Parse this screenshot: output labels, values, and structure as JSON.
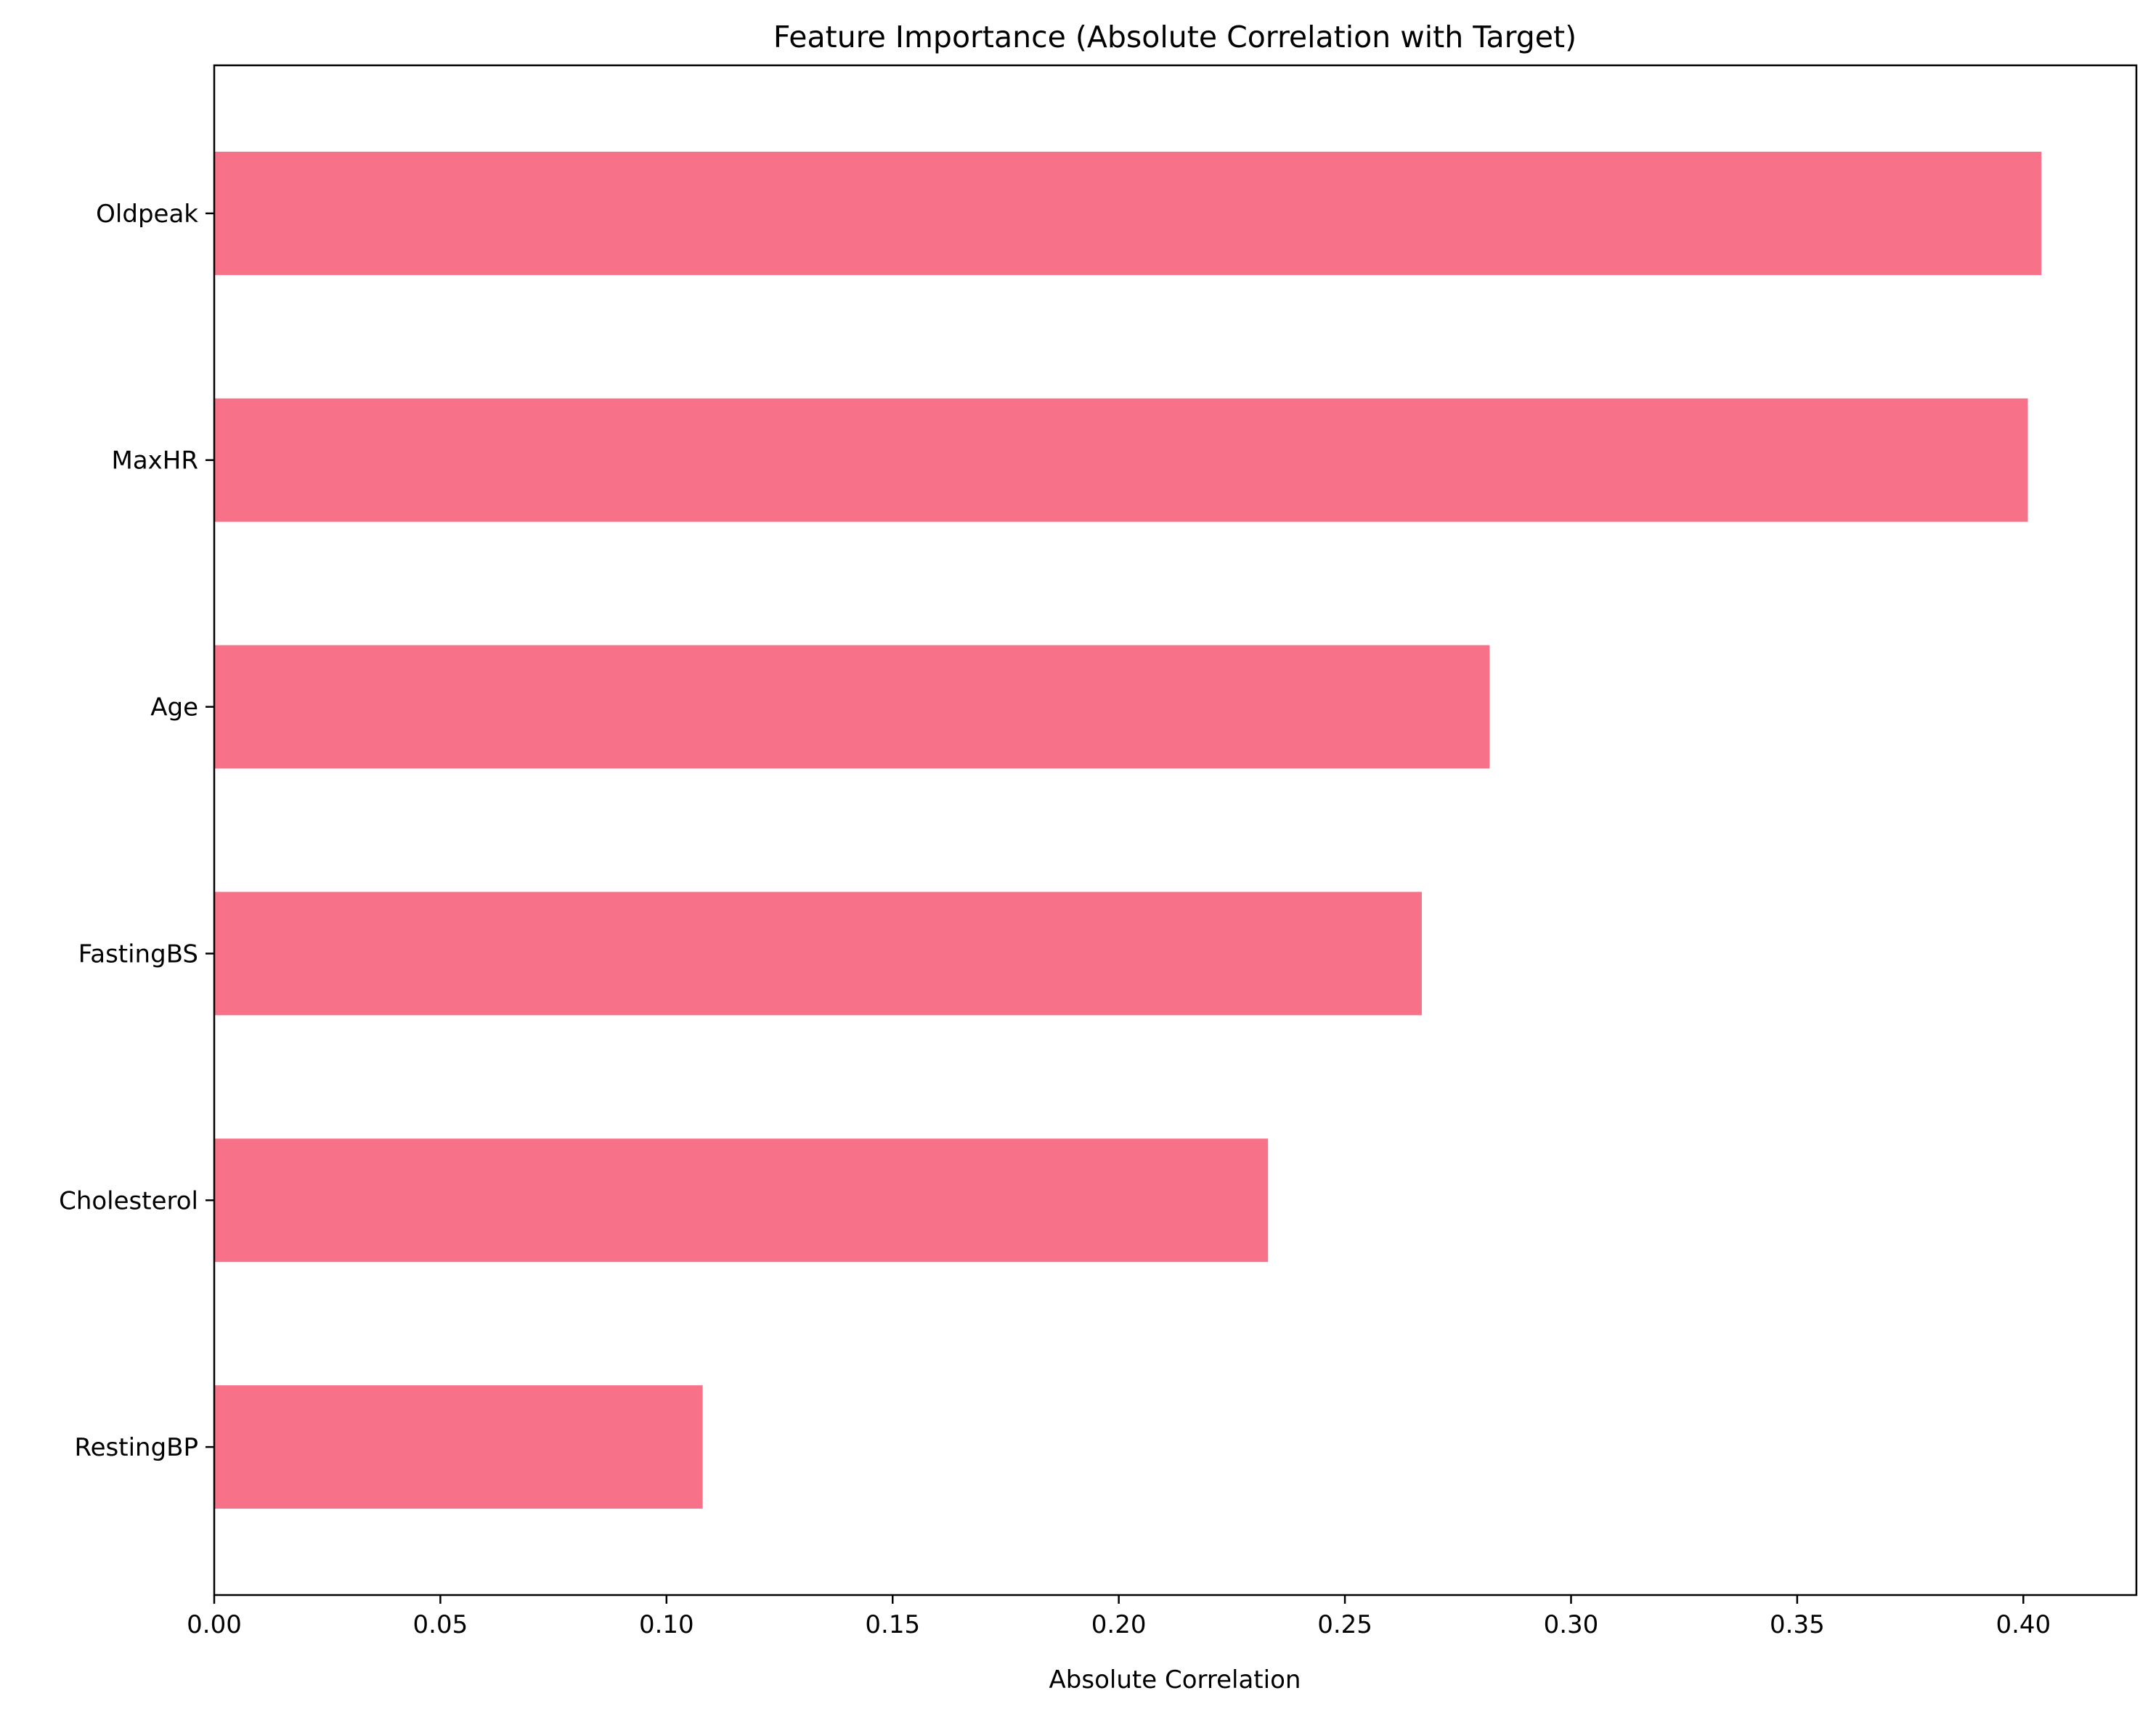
{
  "chart_data": {
    "type": "bar",
    "orientation": "horizontal",
    "title": "Feature Importance (Absolute Correlation with Target)",
    "xlabel": "Absolute Correlation",
    "ylabel": "",
    "categories": [
      "Oldpeak",
      "MaxHR",
      "Age",
      "FastingBS",
      "Cholesterol",
      "RestingBP"
    ],
    "values": [
      0.404,
      0.401,
      0.282,
      0.267,
      0.233,
      0.108
    ],
    "xlim": [
      0,
      0.425
    ],
    "xticks": [
      0.0,
      0.05,
      0.1,
      0.15,
      0.2,
      0.25,
      0.3,
      0.35,
      0.4
    ],
    "xtick_labels": [
      "0.00",
      "0.05",
      "0.10",
      "0.15",
      "0.20",
      "0.25",
      "0.30",
      "0.35",
      "0.40"
    ],
    "grid": false,
    "bar_color": "#f77189"
  }
}
